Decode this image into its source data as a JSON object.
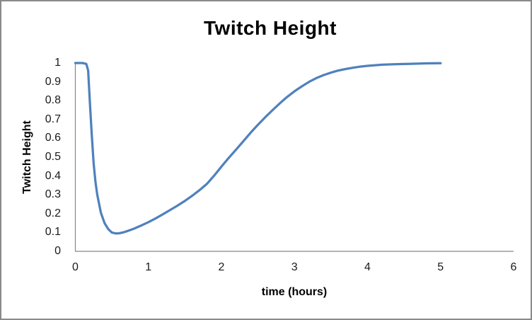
{
  "frame": {
    "background": "#FFFFFF",
    "border_color": "#898989",
    "axis_color": "#878787",
    "text_color": "#1A1A1A"
  },
  "chart_data": {
    "type": "line",
    "title": "Twitch Height",
    "xlabel": "time (hours)",
    "ylabel": "Twitch Height",
    "xlim": [
      0,
      6
    ],
    "ylim": [
      0,
      1
    ],
    "x_tick_values": [
      0,
      1,
      2,
      3,
      4,
      5,
      6
    ],
    "x_tick_labels": [
      "0",
      "1",
      "2",
      "3",
      "4",
      "5",
      "6"
    ],
    "y_tick_values": [
      0,
      0.1,
      0.2,
      0.3,
      0.4,
      0.5,
      0.6,
      0.7,
      0.8,
      0.9,
      1
    ],
    "y_tick_labels": [
      "0",
      "0.1",
      "0.2",
      "0.3",
      "0.4",
      "0.5",
      "0.6",
      "0.7",
      "0.8",
      "0.9",
      "1"
    ],
    "grid": false,
    "legend_position": "none",
    "line_color": "#4F81BD",
    "line_width": 3.25,
    "series": [
      {
        "name": "Twitch Height",
        "x": [
          0,
          0.05,
          0.1,
          0.15,
          0.175,
          0.2,
          0.225,
          0.25,
          0.275,
          0.3,
          0.35,
          0.4,
          0.45,
          0.5,
          0.55,
          0.6,
          0.65,
          0.7,
          0.8,
          0.9,
          1.0,
          1.1,
          1.2,
          1.3,
          1.4,
          1.5,
          1.6,
          1.7,
          1.8,
          1.9,
          2.0,
          2.1,
          2.2,
          2.3,
          2.4,
          2.5,
          2.6,
          2.7,
          2.8,
          2.9,
          3.0,
          3.1,
          3.2,
          3.3,
          3.4,
          3.5,
          3.6,
          3.7,
          3.8,
          3.9,
          4.0,
          4.2,
          4.4,
          4.6,
          4.8,
          5.0
        ],
        "y": [
          1,
          1,
          1,
          0.995,
          0.96,
          0.78,
          0.62,
          0.47,
          0.37,
          0.3,
          0.205,
          0.15,
          0.118,
          0.1,
          0.095,
          0.096,
          0.1,
          0.106,
          0.12,
          0.137,
          0.155,
          0.175,
          0.197,
          0.22,
          0.243,
          0.268,
          0.295,
          0.325,
          0.358,
          0.402,
          0.45,
          0.496,
          0.54,
          0.585,
          0.63,
          0.672,
          0.712,
          0.75,
          0.786,
          0.82,
          0.85,
          0.876,
          0.9,
          0.92,
          0.936,
          0.949,
          0.96,
          0.968,
          0.975,
          0.981,
          0.985,
          0.991,
          0.994,
          0.996,
          0.998,
          0.999
        ]
      }
    ]
  }
}
